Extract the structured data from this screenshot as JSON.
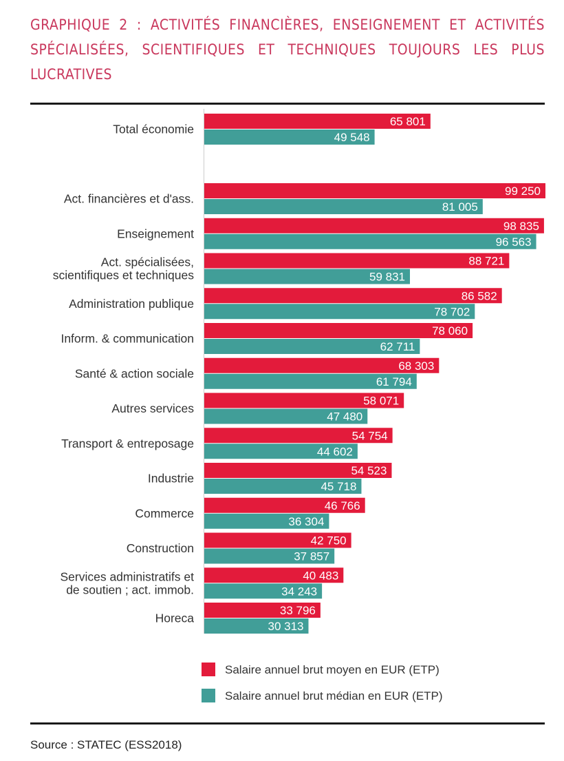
{
  "chart_data": {
    "type": "bar",
    "orientation": "horizontal",
    "title": "GRAPHIQUE 2 : ACTIVITÉS FINANCIÈRES, ENSEIGNEMENT ET ACTIVITÉS SPÉCIALISÉES, SCIENTIFIQUES ET TECHNIQUES TOUJOURS LES PLUS LUCRATIVES",
    "categories": [
      [
        "Total économie"
      ],
      [
        "Act. financières et d'ass."
      ],
      [
        "Enseignement"
      ],
      [
        "Act. spécialisées,",
        "scientifiques et techniques"
      ],
      [
        "Administration publique"
      ],
      [
        "Inform. & communication"
      ],
      [
        "Santé & action sociale"
      ],
      [
        "Autres services"
      ],
      [
        "Transport & entreposage"
      ],
      [
        "Industrie"
      ],
      [
        "Commerce"
      ],
      [
        "Construction"
      ],
      [
        "Services administratifs et",
        "de soutien ; act. immob."
      ],
      [
        "Horeca"
      ]
    ],
    "series": [
      {
        "name": "Salaire annuel brut moyen en EUR (ETP)",
        "color": "#e31b3b",
        "values": [
          65801,
          99250,
          98835,
          88721,
          86582,
          78060,
          68303,
          58071,
          54754,
          54523,
          46766,
          42750,
          40483,
          33796
        ],
        "labels": [
          "65 801",
          "99 250",
          "98 835",
          "88 721",
          "86 582",
          "78 060",
          "68 303",
          "58 071",
          "54 754",
          "54 523",
          "46 766",
          "42 750",
          "40 483",
          "33 796"
        ]
      },
      {
        "name": "Salaire annuel brut médian en EUR (ETP)",
        "color": "#419e98",
        "values": [
          49548,
          81005,
          96563,
          59831,
          78702,
          62711,
          61794,
          47480,
          44602,
          45718,
          36304,
          37857,
          34243,
          30313
        ],
        "labels": [
          "49 548",
          "81 005",
          "96 563",
          "59 831",
          "78 702",
          "62 711",
          "61 794",
          "47 480",
          "44 602",
          "45 718",
          "36 304",
          "37 857",
          "34 243",
          "30 313"
        ]
      }
    ],
    "xlim": [
      0,
      99250
    ],
    "grid": false,
    "legend_placement": "bottom"
  },
  "source": "Source : STATEC (ESS2018)"
}
